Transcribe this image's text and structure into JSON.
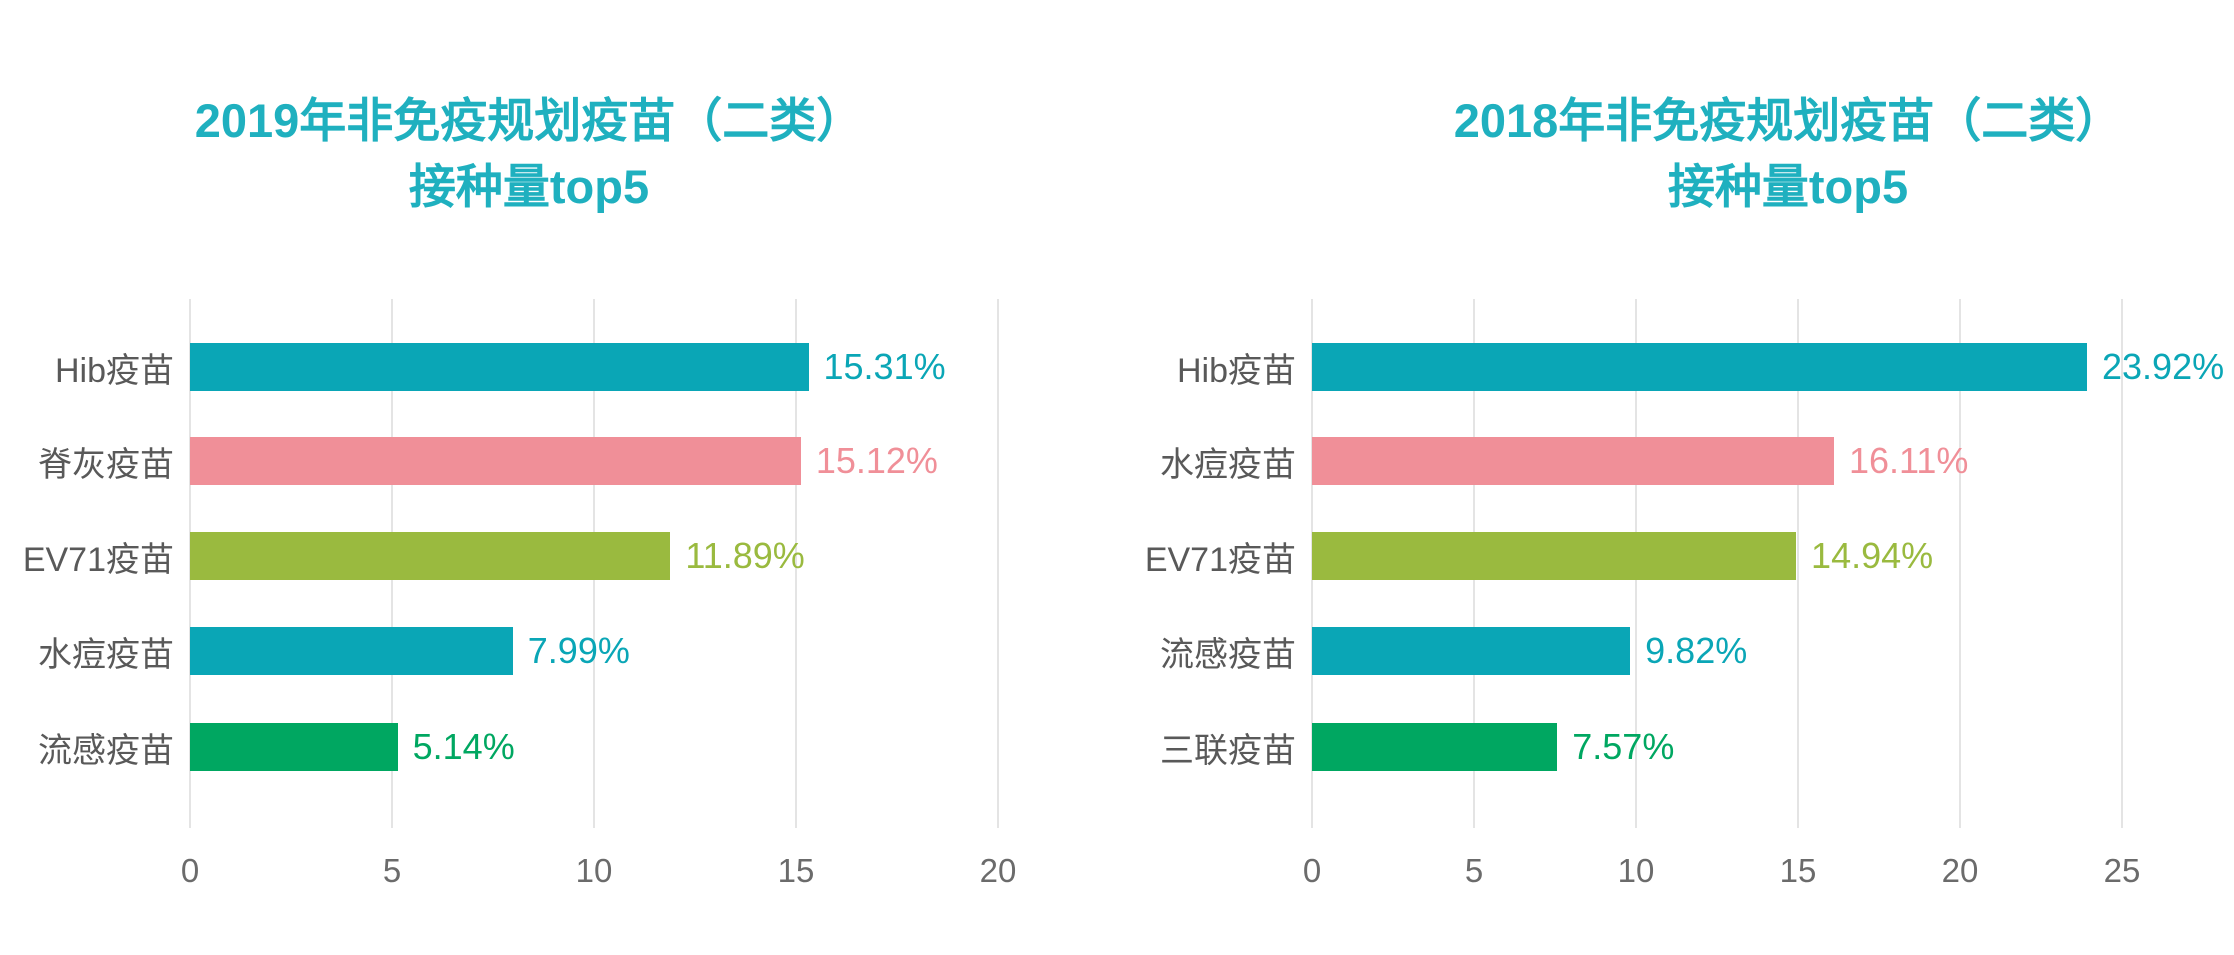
{
  "page": {
    "background_color": "#ffffff",
    "title_color": "#1fb0bf",
    "category_label_color": "#595959",
    "tick_label_color": "#6b6b6b",
    "gridline_color": "#e4e4e4"
  },
  "chart_data": [
    {
      "type": "bar",
      "orientation": "horizontal",
      "title": "2019年非免疫规划疫苗（二类）接种量top5",
      "title_line1": "2019年非免疫规划疫苗（二类）",
      "title_line2": "接种量top5",
      "categories": [
        "Hib疫苗",
        "脊灰疫苗",
        "EV71疫苗",
        "水痘疫苗",
        "流感疫苗"
      ],
      "values": [
        15.31,
        15.12,
        11.89,
        7.99,
        5.14
      ],
      "value_labels": [
        "15.31%",
        "15.12%",
        "11.89%",
        "7.99%",
        "5.14%"
      ],
      "bar_colors": [
        "#0aa6b6",
        "#f08f98",
        "#9aba3f",
        "#0aa6b6",
        "#00a761"
      ],
      "x_ticks": [
        0,
        5,
        10,
        15,
        20
      ],
      "xlim": [
        0,
        20
      ],
      "xlabel": "",
      "ylabel": "",
      "grid": "vertical-only",
      "legend": "none"
    },
    {
      "type": "bar",
      "orientation": "horizontal",
      "title": "2018年非免疫规划疫苗（二类）接种量top5",
      "title_line1": "2018年非免疫规划疫苗（二类）",
      "title_line2": "接种量top5",
      "categories": [
        "Hib疫苗",
        "水痘疫苗",
        "EV71疫苗",
        "流感疫苗",
        "三联疫苗"
      ],
      "values": [
        23.92,
        16.11,
        14.94,
        9.82,
        7.57
      ],
      "value_labels": [
        "23.92%",
        "16.11%",
        "14.94%",
        "9.82%",
        "7.57%"
      ],
      "bar_colors": [
        "#0aa6b6",
        "#f08f98",
        "#9aba3f",
        "#0aa6b6",
        "#00a761"
      ],
      "x_ticks": [
        0,
        5,
        10,
        15,
        20,
        25
      ],
      "xlim": [
        0,
        25
      ],
      "xlabel": "",
      "ylabel": "",
      "grid": "vertical-only",
      "legend": "none"
    }
  ]
}
